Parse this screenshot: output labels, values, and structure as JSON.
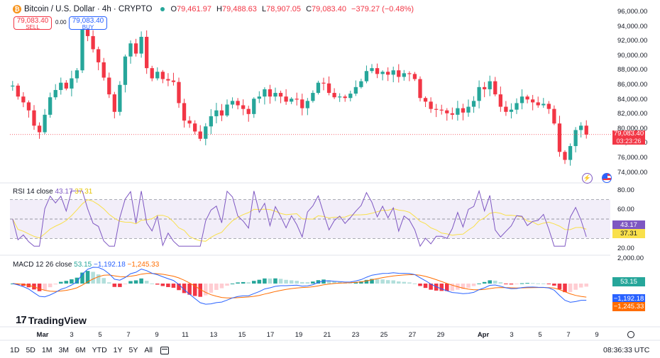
{
  "header": {
    "symbol_title": "Bitcoin / U.S. Dollar · 4h · CRYPTO",
    "ohlc": [
      {
        "k": "O",
        "v": "79,461.97"
      },
      {
        "k": "H",
        "v": "79,488.63"
      },
      {
        "k": "L",
        "v": "78,907.05"
      },
      {
        "k": "C",
        "v": "79,083.40"
      },
      {
        "k": "",
        "v": "−379.27 (−0.48%)"
      }
    ]
  },
  "trade": {
    "sell_price": "79,083.40",
    "sell_label": "SELL",
    "buy_price": "79,083.40",
    "buy_label": "BUY",
    "spread": "0.00"
  },
  "price_axis": [
    "96,000.00",
    "94,000.00",
    "92,000.00",
    "90,000.00",
    "88,000.00",
    "86,000.00",
    "84,000.00",
    "82,000.00",
    "80,000.00",
    "78,000.00",
    "76,000.00",
    "74,000.00"
  ],
  "current_price": {
    "value": "79,083.40",
    "countdown": "03:23:26"
  },
  "rsi": {
    "label": "RSI",
    "params": "14 close",
    "value": "43.17",
    "ma": "37.31",
    "axis": [
      "80.00",
      "60.00",
      "40.00",
      "20.00"
    ]
  },
  "macd": {
    "label": "MACD",
    "params": "12 26 close",
    "hist": "53.15",
    "macd": "−1,192.18",
    "signal": "−1,245.33",
    "axis_top": "2,000.00"
  },
  "brand": "TradingView",
  "dates": [
    {
      "t": "Mar",
      "bold": true
    },
    {
      "t": "3"
    },
    {
      "t": "5"
    },
    {
      "t": "7"
    },
    {
      "t": "9"
    },
    {
      "t": "11"
    },
    {
      "t": "13"
    },
    {
      "t": "15"
    },
    {
      "t": "17"
    },
    {
      "t": "19"
    },
    {
      "t": "21"
    },
    {
      "t": "23"
    },
    {
      "t": "25"
    },
    {
      "t": "27"
    },
    {
      "t": "29"
    },
    {
      "t": "Apr",
      "bold": true
    },
    {
      "t": "3"
    },
    {
      "t": "5"
    },
    {
      "t": "7"
    },
    {
      "t": "9"
    }
  ],
  "timeframes": [
    "1D",
    "5D",
    "1M",
    "3M",
    "6M",
    "YTD",
    "1Y",
    "5Y",
    "All"
  ],
  "clock": "08:36:33 UTC",
  "colors": {
    "up": "#26a69a",
    "down": "#f23645",
    "rsi": "#7e57c2",
    "rsi_ma": "#f9e04b",
    "macd": "#2962ff",
    "signal": "#ff6d00"
  },
  "icons": [
    "bitcoin-icon",
    "live-status-dot",
    "flash-icon",
    "us-flag-icon",
    "settings-gear-icon",
    "calendar-range-icon"
  ],
  "chart_data": {
    "type": "candlestick",
    "title": "Bitcoin / U.S. Dollar · 4h · CRYPTO",
    "x_range": [
      "Mar 1",
      "Apr 9"
    ],
    "ylim": [
      73000,
      96500
    ],
    "close_path": [
      85800,
      84300,
      83500,
      82400,
      80300,
      79400,
      81800,
      84200,
      85200,
      86200,
      85400,
      86800,
      87900,
      93900,
      92600,
      90800,
      89000,
      86900,
      84600,
      82200,
      85900,
      89800,
      91600,
      90200,
      92500,
      88200,
      86800,
      87700,
      86700,
      86500,
      86300,
      83400,
      81000,
      80600,
      79500,
      78500,
      80200,
      81600,
      82400,
      81700,
      83200,
      83700,
      83100,
      82600,
      81900,
      84000,
      84300,
      85300,
      84300,
      84800,
      84300,
      83600,
      84000,
      83900,
      82700,
      83700,
      84800,
      86200,
      86100,
      84800,
      84200,
      84300,
      84100,
      84700,
      85600,
      86400,
      87800,
      88200,
      87400,
      87700,
      87300,
      87900,
      87000,
      87500,
      87400,
      86700,
      84100,
      83600,
      82600,
      82500,
      82400,
      82000,
      81800,
      82700,
      82100,
      82900,
      83700,
      85600,
      85300,
      86400,
      84600,
      82900,
      82200,
      82500,
      83400,
      84300,
      83900,
      83500,
      83100,
      83300,
      82600,
      80600,
      76700,
      75600,
      77500,
      79700,
      80300,
      79083
    ],
    "current": 79083.4,
    "rsi": {
      "levels": [
        30,
        70
      ],
      "axis": [
        20,
        80
      ]
    },
    "macd_last": {
      "hist": 53.15,
      "macd": -1192.18,
      "signal": -1245.33
    }
  }
}
